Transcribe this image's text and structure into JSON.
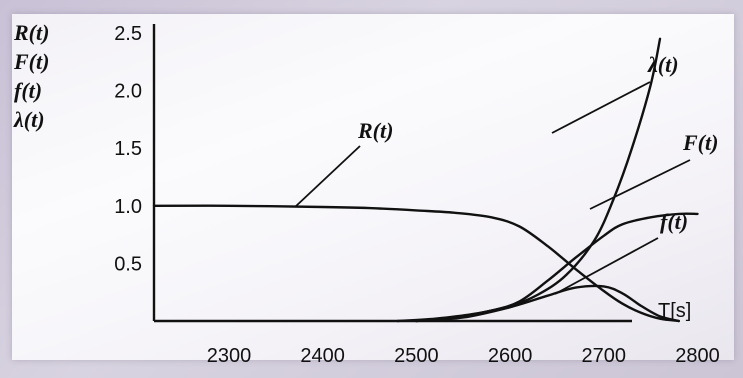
{
  "chart_data": {
    "type": "line",
    "title": "",
    "ylabel_lines": [
      "R(t)",
      "F(t)",
      "f(t)",
      "λ(t)"
    ],
    "xlabel": "T[s]",
    "xlim": [
      2220,
      2840
    ],
    "ylim": [
      0,
      2.5
    ],
    "x_ticks": [
      "2300",
      "2400",
      "2500",
      "2600",
      "2700",
      "2800"
    ],
    "y_ticks": [
      "2.5",
      "2.0",
      "1.5",
      "1.0",
      "0.5"
    ],
    "grid": false,
    "series": [
      {
        "name": "R(t)",
        "x": [
          2220,
          2300,
          2400,
          2450,
          2500,
          2540,
          2580,
          2610,
          2640,
          2670,
          2700,
          2720,
          2740,
          2760,
          2780
        ],
        "y": [
          1.0,
          1.0,
          0.99,
          0.98,
          0.96,
          0.94,
          0.9,
          0.82,
          0.65,
          0.45,
          0.26,
          0.15,
          0.07,
          0.02,
          0.0
        ]
      },
      {
        "name": "F(t)",
        "x": [
          2500,
          2540,
          2580,
          2610,
          2640,
          2670,
          2700,
          2720,
          2750,
          2780,
          2800
        ],
        "y": [
          0.0,
          0.03,
          0.09,
          0.17,
          0.35,
          0.55,
          0.74,
          0.84,
          0.9,
          0.93,
          0.93
        ]
      },
      {
        "name": "f(t)",
        "x": [
          2500,
          2550,
          2600,
          2640,
          2670,
          2700,
          2720,
          2740,
          2760,
          2780
        ],
        "y": [
          0.0,
          0.03,
          0.12,
          0.22,
          0.29,
          0.3,
          0.24,
          0.13,
          0.04,
          0.0
        ]
      },
      {
        "name": "λ(t)",
        "x": [
          2480,
          2520,
          2560,
          2600,
          2630,
          2660,
          2690,
          2710,
          2730,
          2750,
          2760
        ],
        "y": [
          0.0,
          0.02,
          0.06,
          0.13,
          0.23,
          0.4,
          0.7,
          1.05,
          1.5,
          2.05,
          2.45
        ]
      }
    ]
  }
}
